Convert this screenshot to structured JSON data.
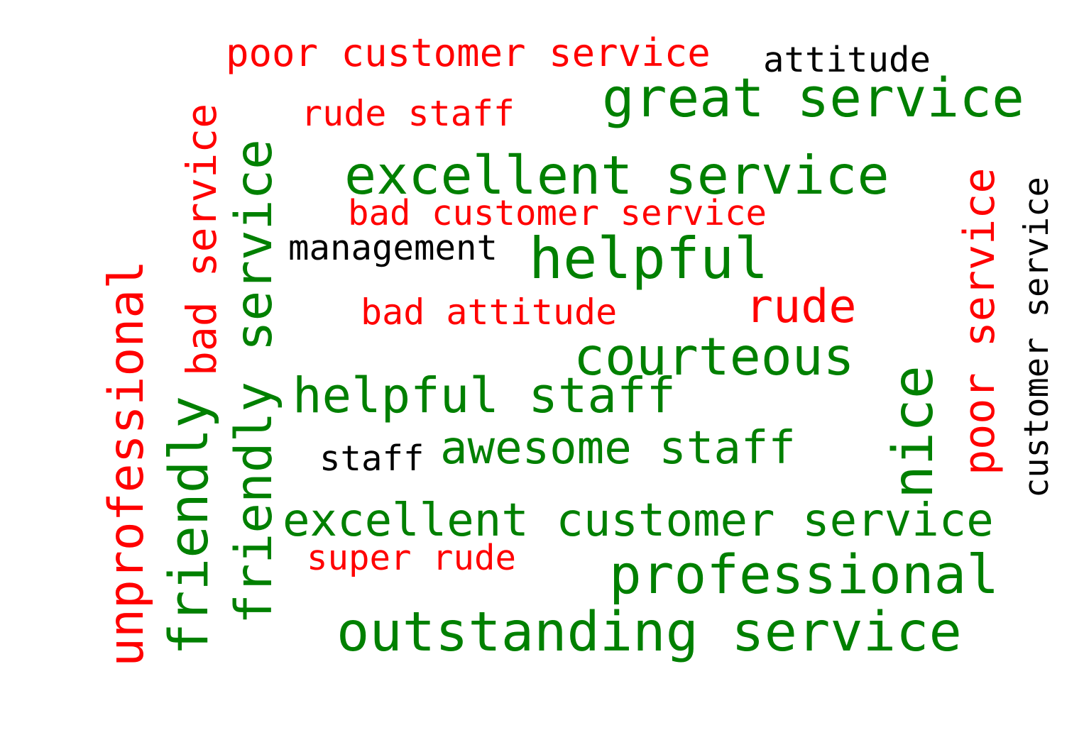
{
  "colors": {
    "positive": "#008000",
    "negative": "#ff0000",
    "neutral": "#000000"
  },
  "words": {
    "poor_customer_service_h": "poor customer service",
    "attitude": "attitude",
    "great_service": "great service",
    "rude_staff": "rude staff",
    "excellent_service": "excellent service",
    "bad_customer_service": "bad customer service",
    "management": "management",
    "helpful": "helpful",
    "bad_attitude": "bad attitude",
    "rude": "rude",
    "courteous": "courteous",
    "helpful_staff": "helpful staff",
    "awesome_staff": "awesome staff",
    "staff": "staff",
    "excellent_customer_service": "excellent customer service",
    "super_rude": "super rude",
    "professional": "professional",
    "outstanding_service": "outstanding service",
    "bad_service_v": "bad service",
    "friendly_service_v": "friendly service",
    "unprofessional_v": "unprofessional",
    "friendly_v": "friendly",
    "nice_v": "nice",
    "poor_service_v": "poor service",
    "customer_service_v": "customer service"
  }
}
